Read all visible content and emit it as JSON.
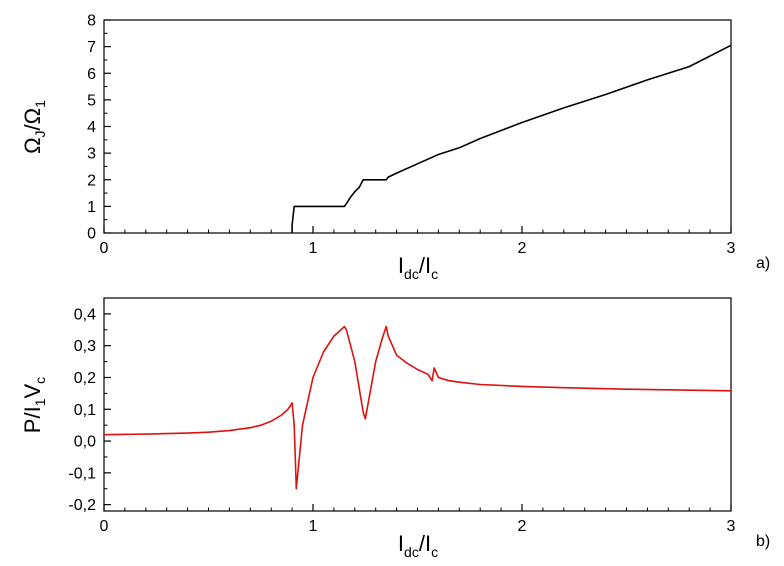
{
  "chart_data": [
    {
      "type": "line",
      "panel_label": "a)",
      "xlabel": {
        "main": "I",
        "sub1": "dc",
        "sep": "/I",
        "sub2": "c"
      },
      "ylabel": {
        "p1": "Ω",
        "sub1": "J",
        "p2": "/Ω",
        "sub2": "1"
      },
      "xlim": [
        0,
        3
      ],
      "ylim": [
        0,
        8
      ],
      "x_ticks": [
        0,
        1,
        2,
        3
      ],
      "x_tick_labels": [
        "0",
        "1",
        "2",
        "3"
      ],
      "y_ticks": [
        0,
        1,
        2,
        3,
        4,
        5,
        6,
        7,
        8
      ],
      "y_tick_labels": [
        "0",
        "1",
        "2",
        "3",
        "4",
        "5",
        "6",
        "7",
        "8"
      ],
      "grid": false,
      "series": [
        {
          "color": "#000000",
          "x": [
            0.9,
            0.9,
            0.91,
            1.0,
            1.1,
            1.15,
            1.16,
            1.18,
            1.2,
            1.22,
            1.23,
            1.24,
            1.25,
            1.3,
            1.35,
            1.36,
            1.4,
            1.5,
            1.6,
            1.7,
            1.8,
            2.0,
            2.2,
            2.4,
            2.6,
            2.8,
            3.0
          ],
          "y": [
            0,
            0.3,
            1.0,
            1.0,
            1.0,
            1.0,
            1.1,
            1.35,
            1.55,
            1.7,
            1.85,
            2.0,
            2.0,
            2.0,
            2.0,
            2.1,
            2.25,
            2.6,
            2.95,
            3.2,
            3.55,
            4.15,
            4.7,
            5.2,
            5.75,
            6.25,
            7.05
          ]
        }
      ]
    },
    {
      "type": "line",
      "panel_label": "b)",
      "xlabel": {
        "main": "I",
        "sub1": "dc",
        "sep": "/I",
        "sub2": "c"
      },
      "ylabel": {
        "p1": "P/I",
        "sub1": "1",
        "p2": "V",
        "sub2": "c"
      },
      "xlim": [
        0,
        3
      ],
      "ylim": [
        -0.22,
        0.45
      ],
      "x_ticks": [
        0,
        1,
        2,
        3
      ],
      "x_tick_labels": [
        "0",
        "1",
        "2",
        "3"
      ],
      "y_ticks": [
        -0.2,
        -0.1,
        0.0,
        0.1,
        0.2,
        0.3,
        0.4
      ],
      "y_tick_labels": [
        "-0,2",
        "-0,1",
        "0,0",
        "0,1",
        "0,2",
        "0,3",
        "0,4"
      ],
      "grid": false,
      "series": [
        {
          "color": "#dd1111",
          "x": [
            0.0,
            0.2,
            0.4,
            0.5,
            0.6,
            0.7,
            0.75,
            0.8,
            0.85,
            0.88,
            0.9,
            0.91,
            0.92,
            0.95,
            1.0,
            1.05,
            1.1,
            1.15,
            1.16,
            1.2,
            1.24,
            1.25,
            1.3,
            1.33,
            1.35,
            1.36,
            1.4,
            1.45,
            1.5,
            1.55,
            1.57,
            1.58,
            1.6,
            1.65,
            1.7,
            1.8,
            2.0,
            2.2,
            2.5,
            3.0
          ],
          "y": [
            0.02,
            0.022,
            0.025,
            0.028,
            0.033,
            0.042,
            0.05,
            0.062,
            0.082,
            0.1,
            0.12,
            0.05,
            -0.15,
            0.05,
            0.2,
            0.28,
            0.33,
            0.36,
            0.35,
            0.25,
            0.09,
            0.07,
            0.25,
            0.32,
            0.36,
            0.33,
            0.27,
            0.245,
            0.225,
            0.21,
            0.19,
            0.23,
            0.2,
            0.19,
            0.185,
            0.178,
            0.172,
            0.168,
            0.163,
            0.158
          ]
        }
      ]
    }
  ]
}
